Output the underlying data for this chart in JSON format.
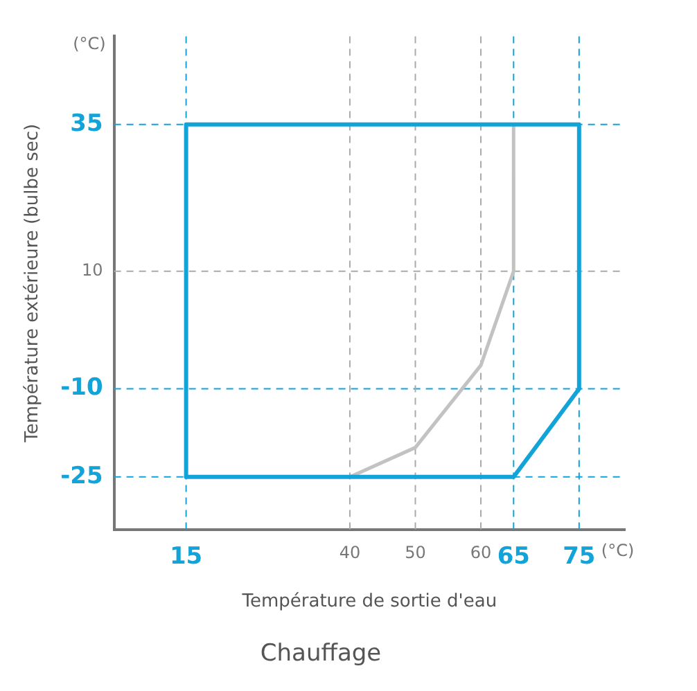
{
  "chart_data": {
    "type": "line",
    "title": "Chauffage",
    "xlabel": "Température de sortie d'eau",
    "ylabel": "Température extérieure (bulbe sec)",
    "annotations": [
      "(°C)",
      "(°C)"
    ],
    "xlim": [
      4,
      82
    ],
    "ylim": [
      -34,
      50
    ],
    "xticks": [
      15,
      40,
      50,
      60,
      65,
      75
    ],
    "yticks": [
      -25,
      -10,
      10,
      35
    ],
    "series": [
      {
        "color": "#12a3d9",
        "x": [
          15,
          15,
          75,
          75
        ],
        "values": [
          -25,
          35,
          35,
          -10
        ]
      },
      {
        "color": "#12a3d9",
        "x": [
          15,
          65,
          75
        ],
        "values": [
          -25,
          -25,
          -10
        ]
      },
      {
        "color": "#c2c2c2",
        "x": [
          40,
          50,
          60,
          65,
          65
        ],
        "values": [
          -25,
          -20,
          -6,
          10,
          35
        ]
      }
    ],
    "ref_lines": [
      {
        "axis": "y",
        "value": 35,
        "color": "#12a3d9",
        "line_style": "dashed"
      },
      {
        "axis": "y",
        "value": 10,
        "color": "#aaaaaa",
        "line_style": "dashed"
      },
      {
        "axis": "y",
        "value": -10,
        "color": "#12a3d9",
        "line_style": "dashed"
      },
      {
        "axis": "y",
        "value": -25,
        "color": "#12a3d9",
        "line_style": "dashed"
      },
      {
        "axis": "x",
        "value": 15,
        "color": "#12a3d9",
        "line_style": "dashed"
      },
      {
        "axis": "x",
        "value": 40,
        "color": "#aaaaaa",
        "line_style": "dashed"
      },
      {
        "axis": "x",
        "value": 50,
        "color": "#aaaaaa",
        "line_style": "dashed"
      },
      {
        "axis": "x",
        "value": 60,
        "color": "#aaaaaa",
        "line_style": "dashed"
      },
      {
        "axis": "x",
        "value": 65,
        "color": "#12a3d9",
        "line_style": "dashed"
      },
      {
        "axis": "x",
        "value": 75,
        "color": "#12a3d9",
        "line_style": "dashed"
      }
    ],
    "grid": false,
    "legend": false,
    "marker": "none",
    "line_style": "solid"
  }
}
